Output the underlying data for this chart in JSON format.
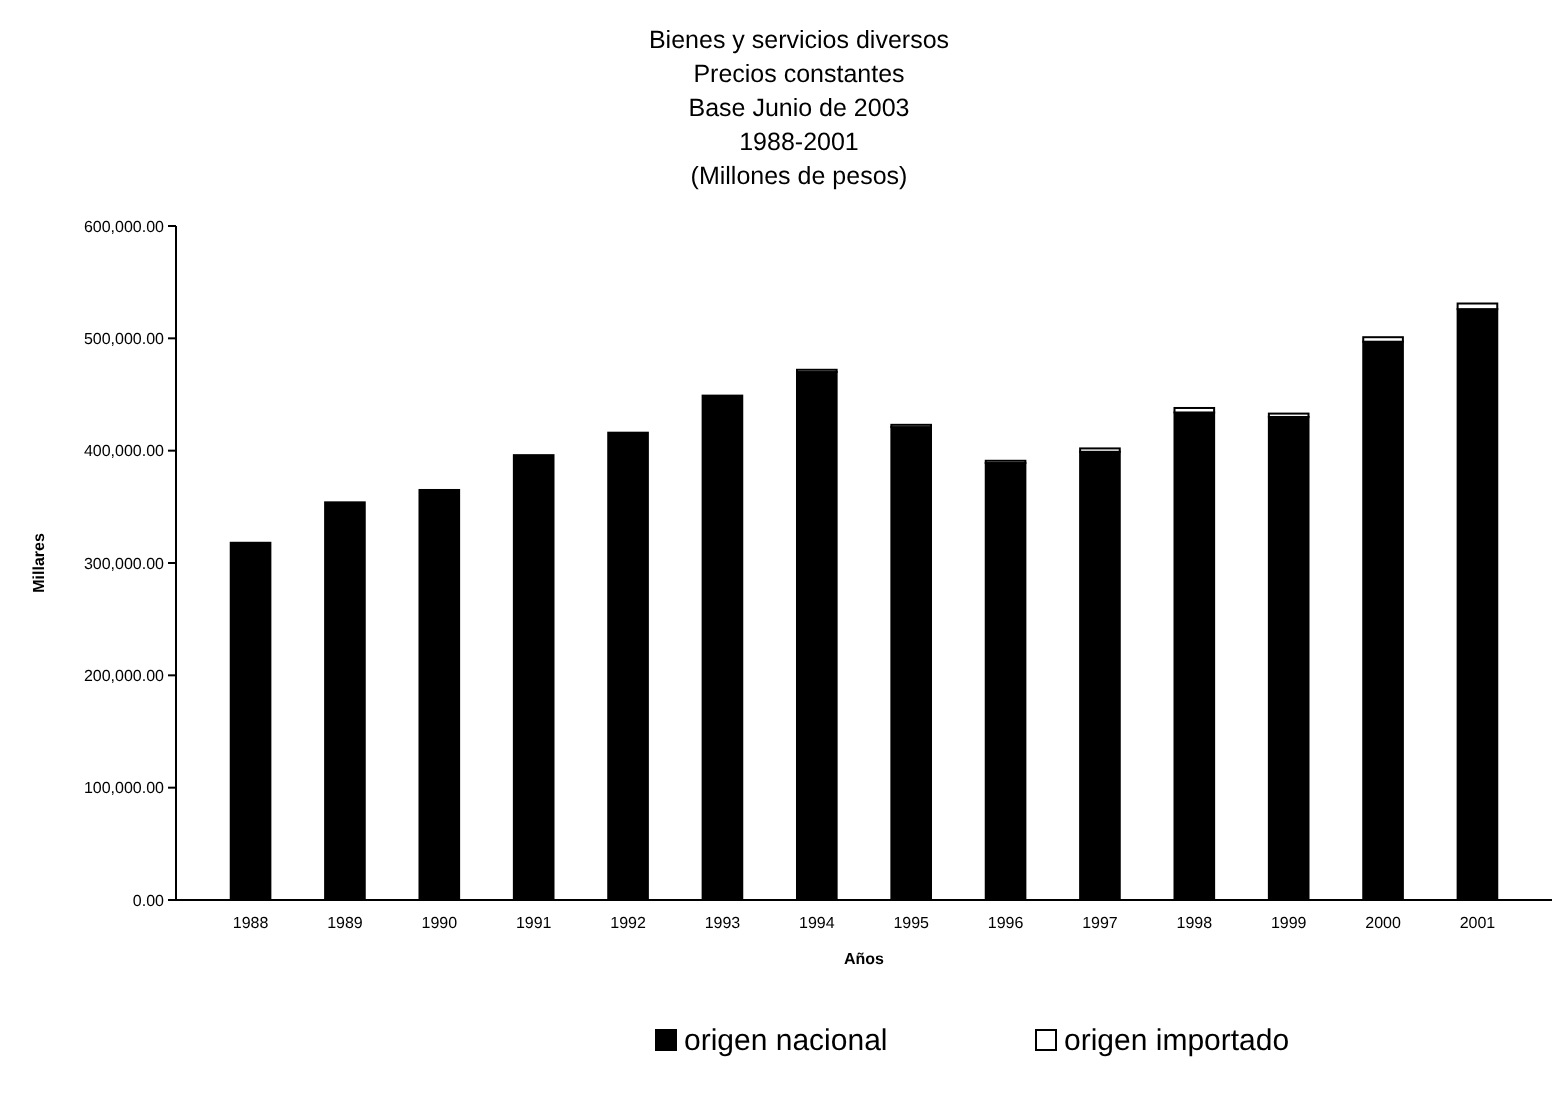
{
  "chart_data": {
    "type": "bar",
    "title": "Bienes y servicios diversos\nPrecios constantes\nBase Junio de 2003\n1988-2001\n(Millones de pesos)",
    "xlabel": "Años",
    "ylabel": "Millares",
    "categories": [
      "1988",
      "1989",
      "1990",
      "1991",
      "1992",
      "1993",
      "1994",
      "1995",
      "1996",
      "1997",
      "1998",
      "1999",
      "2000",
      "2001"
    ],
    "stacked": true,
    "series": [
      {
        "name": "origen nacional",
        "color": "#000000",
        "values": [
          318000,
          354000,
          365000,
          396000,
          416000,
          449000,
          470000,
          421000,
          389000,
          399000,
          434000,
          430000,
          497000,
          526000
        ]
      },
      {
        "name": "origen importado",
        "color": "#ffffff",
        "values": [
          null,
          null,
          null,
          null,
          null,
          null,
          2000,
          2000,
          2000,
          3000,
          4000,
          3000,
          4000,
          5000
        ]
      }
    ],
    "ylim": [
      0,
      600000
    ],
    "yticks": [
      {
        "value": 0,
        "label": "0.00"
      },
      {
        "value": 100000,
        "label": "100,000.00"
      },
      {
        "value": 200000,
        "label": "200,000.00"
      },
      {
        "value": 300000,
        "label": "300,000.00"
      },
      {
        "value": 400000,
        "label": "400,000.00"
      },
      {
        "value": 500000,
        "label": "500,000.00"
      },
      {
        "value": 600000,
        "label": "600,000.00"
      }
    ],
    "grid": false,
    "legend": "bottom"
  }
}
